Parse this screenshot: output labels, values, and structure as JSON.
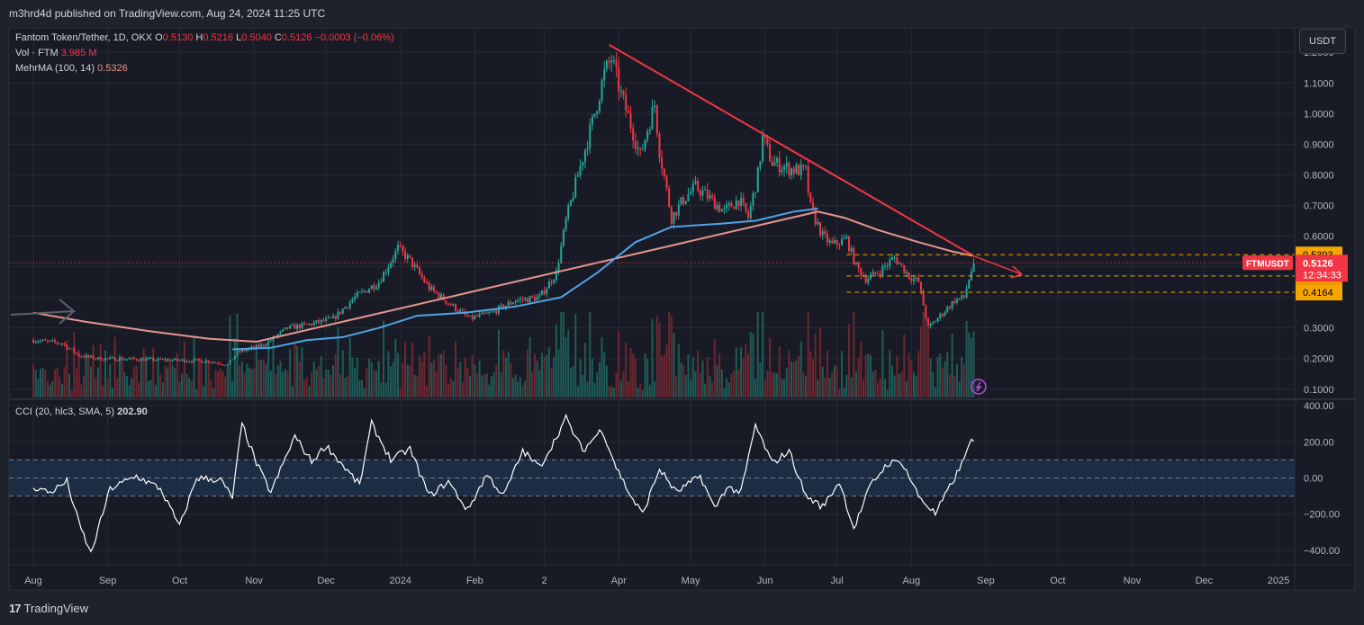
{
  "header": {
    "publisher": "m3hrd4d published on TradingView.com, Aug 24, 2024 11:25 UTC",
    "symbol": "Fantom Token/Tether, 1D, OKX",
    "o_label": "O",
    "o": "0.5130",
    "h_label": "H",
    "h": "0.5216",
    "l_label": "L",
    "l": "0.5040",
    "c_label": "C",
    "c": "0.5126",
    "change": "−0.0003 (−0.06%)",
    "vol_label": "Vol · FTM",
    "vol": "3.985 M",
    "ma_label": "MehrMA (100, 14)",
    "ma": "0.5326"
  },
  "currency": "USDT",
  "footer": {
    "brand": "TradingView",
    "brand_mark": "17"
  },
  "colors": {
    "background": "#1e222d",
    "up": "#26a69a",
    "down": "#f23645",
    "ma_short": "#4fa3e8",
    "ma_long": "#e5958d",
    "trendline": "#f23645",
    "level": "#f7a600",
    "cci": "#ffffff",
    "cci_band": "#1f3a5c"
  },
  "chart_data": [
    {
      "type": "candlestick",
      "title": "Fantom Token/Tether, 1D, OKX",
      "ylim": [
        0.07,
        1.28
      ],
      "y_ticks": [
        1.2,
        1.1,
        1.0,
        0.9,
        0.8,
        0.7,
        0.6,
        0.5,
        0.4,
        0.3,
        0.2,
        0.1
      ],
      "y_tick_labels": [
        "1.2000",
        "1.1000",
        "1.0000",
        "0.9000",
        "0.8000",
        "0.7000",
        "0.6000",
        "",
        "",
        "0.3000",
        "0.2000",
        "0.1000"
      ],
      "x_tick_labels": [
        "Aug",
        "Sep",
        "Oct",
        "Nov",
        "Dec",
        "2024",
        "Feb",
        "2",
        "Apr",
        "May",
        "Jun",
        "Jul",
        "Aug",
        "Sep",
        "Oct",
        "Nov",
        "Dec",
        "2025"
      ],
      "x_tick_days": [
        0,
        31,
        61,
        92,
        122,
        153,
        184,
        213,
        244,
        274,
        305,
        335,
        366,
        397,
        427,
        458,
        488,
        519
      ],
      "x_start": "2023-07-29",
      "last_price": 0.5126,
      "price_label": "FTMUSDT",
      "countdown": "12:34:33",
      "levels": [
        {
          "value": 0.5393,
          "label": "0.5393"
        },
        {
          "value": 0.4698,
          "label": "0.4698"
        },
        {
          "value": 0.4164,
          "label": "0.4164"
        }
      ],
      "trendline": {
        "from": [
          "2024-03-25",
          1.225
        ],
        "to": [
          "2024-08-24",
          0.535
        ]
      },
      "arrow_to": [
        "2024-09-13",
        0.475
      ],
      "price_path": [
        [
          "2023-07-29",
          0.26
        ],
        [
          "2023-08-10",
          0.25
        ],
        [
          "2023-08-17",
          0.21
        ],
        [
          "2023-08-25",
          0.2
        ],
        [
          "2023-09-10",
          0.198
        ],
        [
          "2023-09-25",
          0.195
        ],
        [
          "2023-10-10",
          0.192
        ],
        [
          "2023-10-18",
          0.18
        ],
        [
          "2023-10-22",
          0.22
        ],
        [
          "2023-11-02",
          0.245
        ],
        [
          "2023-11-12",
          0.3
        ],
        [
          "2023-11-20",
          0.31
        ],
        [
          "2023-12-01",
          0.33
        ],
        [
          "2023-12-10",
          0.4
        ],
        [
          "2023-12-20",
          0.45
        ],
        [
          "2023-12-28",
          0.56
        ],
        [
          "2024-01-02",
          0.52
        ],
        [
          "2024-01-10",
          0.43
        ],
        [
          "2024-01-20",
          0.37
        ],
        [
          "2024-01-27",
          0.33
        ],
        [
          "2024-02-05",
          0.35
        ],
        [
          "2024-02-15",
          0.39
        ],
        [
          "2024-02-25",
          0.4
        ],
        [
          "2024-03-03",
          0.48
        ],
        [
          "2024-03-07",
          0.65
        ],
        [
          "2024-03-12",
          0.8
        ],
        [
          "2024-03-18",
          0.97
        ],
        [
          "2024-03-23",
          1.13
        ],
        [
          "2024-03-26",
          1.18
        ],
        [
          "2024-03-30",
          1.06
        ],
        [
          "2024-04-02",
          0.99
        ],
        [
          "2024-04-07",
          0.86
        ],
        [
          "2024-04-10",
          0.95
        ],
        [
          "2024-04-13",
          1.03
        ],
        [
          "2024-04-15",
          0.88
        ],
        [
          "2024-04-20",
          0.66
        ],
        [
          "2024-04-25",
          0.72
        ],
        [
          "2024-04-30",
          0.76
        ],
        [
          "2024-05-05",
          0.73
        ],
        [
          "2024-05-12",
          0.68
        ],
        [
          "2024-05-18",
          0.72
        ],
        [
          "2024-05-22",
          0.66
        ],
        [
          "2024-05-26",
          0.8
        ],
        [
          "2024-05-28",
          0.92
        ],
        [
          "2024-06-01",
          0.84
        ],
        [
          "2024-06-08",
          0.82
        ],
        [
          "2024-06-15",
          0.81
        ],
        [
          "2024-06-17",
          0.69
        ],
        [
          "2024-06-22",
          0.6
        ],
        [
          "2024-06-26",
          0.57
        ],
        [
          "2024-07-02",
          0.59
        ],
        [
          "2024-07-06",
          0.5
        ],
        [
          "2024-07-10",
          0.46
        ],
        [
          "2024-07-15",
          0.48
        ],
        [
          "2024-07-22",
          0.53
        ],
        [
          "2024-07-28",
          0.47
        ],
        [
          "2024-08-01",
          0.45
        ],
        [
          "2024-08-05",
          0.3
        ],
        [
          "2024-08-10",
          0.34
        ],
        [
          "2024-08-16",
          0.39
        ],
        [
          "2024-08-20",
          0.4
        ],
        [
          "2024-08-22",
          0.46
        ],
        [
          "2024-08-24",
          0.5126
        ]
      ],
      "ma_short_path": [
        [
          "2023-10-20",
          0.23
        ],
        [
          "2023-11-05",
          0.235
        ],
        [
          "2023-11-20",
          0.26
        ],
        [
          "2023-12-05",
          0.27
        ],
        [
          "2023-12-20",
          0.3
        ],
        [
          "2024-01-05",
          0.34
        ],
        [
          "2024-01-25",
          0.35
        ],
        [
          "2024-02-15",
          0.37
        ],
        [
          "2024-03-05",
          0.4
        ],
        [
          "2024-03-20",
          0.48
        ],
        [
          "2024-04-05",
          0.58
        ],
        [
          "2024-04-20",
          0.63
        ],
        [
          "2024-05-10",
          0.64
        ],
        [
          "2024-05-25",
          0.65
        ],
        [
          "2024-06-10",
          0.68
        ],
        [
          "2024-06-20",
          0.69
        ]
      ],
      "ma_long_path": [
        [
          "2023-07-29",
          0.35
        ],
        [
          "2023-08-20",
          0.32
        ],
        [
          "2023-09-15",
          0.29
        ],
        [
          "2023-10-10",
          0.265
        ],
        [
          "2023-10-30",
          0.255
        ],
        [
          "2024-06-20",
          0.68
        ],
        [
          "2024-07-01",
          0.66
        ],
        [
          "2024-07-15",
          0.62
        ],
        [
          "2024-08-01",
          0.58
        ],
        [
          "2024-08-15",
          0.55
        ],
        [
          "2024-08-24",
          0.535
        ]
      ]
    },
    {
      "type": "line",
      "title": "CCI (20, hlc3, SMA, 5)",
      "last_value": "202.90",
      "ylim": [
        -480,
        430
      ],
      "y_ticks": [
        400,
        200,
        0,
        -200,
        -400
      ],
      "y_tick_labels": [
        "400.00",
        "200.00",
        "0.00",
        "−200.00",
        "−400.00"
      ],
      "band": [
        -100,
        100
      ],
      "series": [
        {
          "values": [
            [
              "2023-07-29",
              -50
            ],
            [
              "2023-08-05",
              -80
            ],
            [
              "2023-08-12",
              -20
            ],
            [
              "2023-08-17",
              -250
            ],
            [
              "2023-08-22",
              -420
            ],
            [
              "2023-08-30",
              -60
            ],
            [
              "2023-09-10",
              10
            ],
            [
              "2023-09-20",
              -60
            ],
            [
              "2023-09-28",
              -270
            ],
            [
              "2023-10-05",
              0
            ],
            [
              "2023-10-15",
              -10
            ],
            [
              "2023-10-20",
              -110
            ],
            [
              "2023-10-24",
              300
            ],
            [
              "2023-10-30",
              80
            ],
            [
              "2023-11-05",
              -80
            ],
            [
              "2023-11-15",
              230
            ],
            [
              "2023-11-22",
              90
            ],
            [
              "2023-11-28",
              180
            ],
            [
              "2023-12-05",
              70
            ],
            [
              "2023-12-12",
              -40
            ],
            [
              "2023-12-17",
              300
            ],
            [
              "2023-12-25",
              100
            ],
            [
              "2024-01-02",
              160
            ],
            [
              "2024-01-10",
              -100
            ],
            [
              "2024-01-18",
              -20
            ],
            [
              "2024-01-26",
              -180
            ],
            [
              "2024-02-03",
              20
            ],
            [
              "2024-02-10",
              -100
            ],
            [
              "2024-02-18",
              150
            ],
            [
              "2024-02-25",
              60
            ],
            [
              "2024-03-02",
              200
            ],
            [
              "2024-03-07",
              330
            ],
            [
              "2024-03-14",
              150
            ],
            [
              "2024-03-22",
              270
            ],
            [
              "2024-03-28",
              60
            ],
            [
              "2024-04-03",
              -100
            ],
            [
              "2024-04-08",
              -200
            ],
            [
              "2024-04-15",
              50
            ],
            [
              "2024-04-22",
              -80
            ],
            [
              "2024-05-02",
              10
            ],
            [
              "2024-05-08",
              -170
            ],
            [
              "2024-05-13",
              -50
            ],
            [
              "2024-05-19",
              -80
            ],
            [
              "2024-05-25",
              290
            ],
            [
              "2024-06-01",
              80
            ],
            [
              "2024-06-08",
              150
            ],
            [
              "2024-06-15",
              -100
            ],
            [
              "2024-06-22",
              -160
            ],
            [
              "2024-06-29",
              -20
            ],
            [
              "2024-07-05",
              -280
            ],
            [
              "2024-07-12",
              -40
            ],
            [
              "2024-07-19",
              80
            ],
            [
              "2024-07-25",
              90
            ],
            [
              "2024-08-01",
              -100
            ],
            [
              "2024-08-08",
              -200
            ],
            [
              "2024-08-14",
              -50
            ],
            [
              "2024-08-20",
              100
            ],
            [
              "2024-08-22",
              200
            ],
            [
              "2024-08-24",
              202.9
            ]
          ]
        }
      ]
    }
  ]
}
